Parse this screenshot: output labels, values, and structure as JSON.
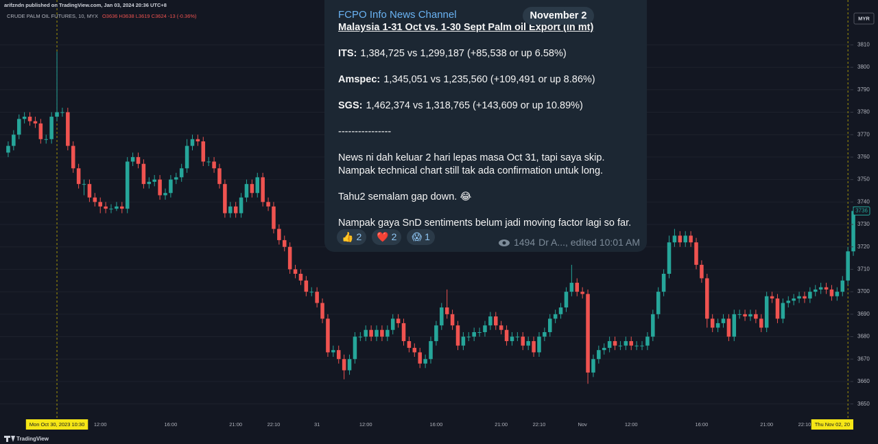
{
  "chart_data": {
    "type": "candlestick",
    "publisher": "arifzndn published on TradingView.com, Jan 03, 2024 20:36 UTC+8",
    "symbol": "CRUDE PALM OIL FUTURES, 10, MYX",
    "ohlc_text": "O3636 H3638 L3619 C3624 -13 (-0.36%)",
    "currency": "MYR",
    "brand": "TradingView",
    "up_color": "#26a69a",
    "down_color": "#ef5350",
    "grid": true,
    "ylim": [
      3645,
      3830
    ],
    "yticks": [
      3650,
      3660,
      3670,
      3680,
      3690,
      3700,
      3710,
      3720,
      3730,
      3740,
      3750,
      3760,
      3770,
      3780,
      3790,
      3800,
      3810
    ],
    "categories": [
      null,
      null,
      null,
      null,
      null,
      null,
      null,
      null,
      null,
      {
        "label": "Mon Oct 30, 2023   10:30",
        "highlight": true
      },
      null,
      null,
      null,
      null,
      null,
      null,
      null,
      "12:00",
      null,
      null,
      null,
      null,
      null,
      null,
      null,
      null,
      null,
      null,
      null,
      null,
      "16:00",
      null,
      null,
      null,
      null,
      null,
      null,
      null,
      null,
      null,
      null,
      null,
      "21:00",
      null,
      null,
      null,
      null,
      null,
      null,
      "22:10",
      null,
      null,
      null,
      null,
      null,
      null,
      null,
      "31",
      null,
      null,
      null,
      null,
      null,
      null,
      null,
      null,
      "12:00",
      null,
      null,
      null,
      null,
      null,
      null,
      null,
      null,
      null,
      null,
      null,
      null,
      "16:00",
      null,
      null,
      null,
      null,
      null,
      null,
      null,
      null,
      null,
      null,
      null,
      "21:00",
      null,
      null,
      null,
      null,
      null,
      null,
      "22:10",
      null,
      null,
      null,
      null,
      null,
      null,
      null,
      "Nov",
      null,
      null,
      null,
      null,
      null,
      null,
      null,
      null,
      "12:00",
      null,
      null,
      null,
      null,
      null,
      null,
      null,
      null,
      null,
      null,
      null,
      null,
      "16:00",
      null,
      null,
      null,
      null,
      null,
      null,
      null,
      null,
      null,
      null,
      null,
      "21:00",
      null,
      null,
      null,
      null,
      null,
      null,
      "22:10",
      null,
      null,
      null,
      null,
      null,
      null,
      null,
      {
        "label": "Thu Nov 02, 20",
        "highlight": true
      },
      null
    ],
    "open": [
      3762,
      3765,
      3770,
      3777,
      3778,
      3776,
      3775,
      3768,
      3768,
      3778,
      3780,
      3780,
      3765,
      3755,
      3748,
      3748,
      3742,
      3740,
      3738,
      3737,
      3737,
      3738,
      3737,
      3758,
      3760,
      3757,
      3748,
      3749,
      3750,
      3743,
      3744,
      3750,
      3751,
      3755,
      3765,
      3768,
      3767,
      3758,
      3758,
      3755,
      3748,
      3735,
      3738,
      3735,
      3742,
      3748,
      3744,
      3751,
      3740,
      3738,
      3728,
      3723,
      3720,
      3710,
      3708,
      3705,
      3700,
      3700,
      3695,
      3688,
      3673,
      3674,
      3670,
      3665,
      3670,
      3680,
      3680,
      3683,
      3680,
      3683,
      3680,
      3683,
      3688,
      3686,
      3678,
      3675,
      3673,
      3668,
      3670,
      3678,
      3685,
      3693,
      3690,
      3685,
      3676,
      3680,
      3680,
      3682,
      3682,
      3685,
      3689,
      3685,
      3683,
      3678,
      3680,
      3680,
      3676,
      3678,
      3673,
      3680,
      3682,
      3688,
      3690,
      3693,
      3700,
      3704,
      3700,
      3699,
      3664,
      3670,
      3674,
      3675,
      3678,
      3676,
      3676,
      3678,
      3676,
      3676,
      3676,
      3680,
      3690,
      3700,
      3708,
      3722,
      3725,
      3722,
      3725,
      3722,
      3712,
      3706,
      3688,
      3684,
      3686,
      3688,
      3680,
      3690,
      3690,
      3689,
      3690,
      3688,
      3684,
      3698,
      3697,
      3688,
      3695,
      3696,
      3697,
      3698,
      3697,
      3700,
      3701,
      3702,
      3701,
      3698,
      3700,
      3705,
      3718
    ],
    "high": [
      3767,
      3772,
      3779,
      3780,
      3780,
      3778,
      3777,
      3770,
      3780,
      3807,
      3782,
      3782,
      3767,
      3757,
      3750,
      3750,
      3744,
      3742,
      3740,
      3739,
      3740,
      3740,
      3760,
      3762,
      3762,
      3759,
      3751,
      3752,
      3752,
      3746,
      3752,
      3753,
      3757,
      3768,
      3770,
      3770,
      3769,
      3760,
      3760,
      3757,
      3750,
      3740,
      3740,
      3744,
      3750,
      3750,
      3753,
      3753,
      3742,
      3740,
      3730,
      3725,
      3722,
      3712,
      3710,
      3707,
      3702,
      3702,
      3697,
      3690,
      3676,
      3676,
      3672,
      3672,
      3682,
      3682,
      3685,
      3685,
      3685,
      3685,
      3685,
      3690,
      3690,
      3688,
      3680,
      3677,
      3675,
      3672,
      3680,
      3687,
      3695,
      3701,
      3692,
      3687,
      3682,
      3682,
      3684,
      3684,
      3687,
      3691,
      3691,
      3687,
      3685,
      3682,
      3682,
      3682,
      3680,
      3680,
      3682,
      3684,
      3690,
      3692,
      3695,
      3702,
      3712,
      3706,
      3702,
      3701,
      3672,
      3676,
      3677,
      3680,
      3680,
      3678,
      3680,
      3680,
      3678,
      3678,
      3682,
      3692,
      3702,
      3710,
      3725,
      3728,
      3727,
      3727,
      3727,
      3724,
      3714,
      3708,
      3690,
      3688,
      3690,
      3690,
      3692,
      3692,
      3692,
      3692,
      3692,
      3690,
      3700,
      3700,
      3699,
      3697,
      3698,
      3699,
      3700,
      3700,
      3702,
      3703,
      3704,
      3704,
      3703,
      3702,
      3707,
      3720,
      3738
    ],
    "low": [
      3760,
      3763,
      3768,
      3775,
      3774,
      3773,
      3766,
      3766,
      3766,
      3776,
      3778,
      3763,
      3753,
      3746,
      3743,
      3740,
      3738,
      3735,
      3735,
      3735,
      3736,
      3735,
      3735,
      3756,
      3755,
      3746,
      3746,
      3747,
      3741,
      3741,
      3742,
      3748,
      3749,
      3753,
      3763,
      3765,
      3756,
      3756,
      3753,
      3746,
      3733,
      3733,
      3733,
      3733,
      3740,
      3742,
      3742,
      3738,
      3736,
      3726,
      3721,
      3718,
      3708,
      3706,
      3703,
      3698,
      3698,
      3693,
      3686,
      3671,
      3671,
      3668,
      3661,
      3663,
      3668,
      3678,
      3678,
      3678,
      3678,
      3678,
      3678,
      3681,
      3684,
      3676,
      3673,
      3671,
      3666,
      3666,
      3668,
      3676,
      3683,
      3688,
      3683,
      3674,
      3674,
      3678,
      3678,
      3680,
      3680,
      3683,
      3683,
      3681,
      3676,
      3676,
      3678,
      3674,
      3674,
      3671,
      3671,
      3678,
      3680,
      3686,
      3688,
      3691,
      3698,
      3698,
      3697,
      3659,
      3662,
      3668,
      3672,
      3673,
      3674,
      3674,
      3674,
      3674,
      3674,
      3674,
      3674,
      3678,
      3688,
      3698,
      3706,
      3720,
      3720,
      3720,
      3720,
      3710,
      3704,
      3684,
      3682,
      3682,
      3684,
      3678,
      3678,
      3688,
      3687,
      3687,
      3686,
      3682,
      3682,
      3695,
      3686,
      3686,
      3693,
      3694,
      3695,
      3695,
      3695,
      3698,
      3699,
      3699,
      3696,
      3696,
      3698,
      3703,
      3716
    ],
    "close": [
      3765,
      3770,
      3777,
      3778,
      3776,
      3775,
      3768,
      3768,
      3778,
      3780,
      3780,
      3765,
      3755,
      3748,
      3748,
      3742,
      3740,
      3738,
      3737,
      3737,
      3738,
      3737,
      3758,
      3760,
      3757,
      3748,
      3749,
      3750,
      3743,
      3744,
      3750,
      3751,
      3755,
      3765,
      3768,
      3767,
      3758,
      3758,
      3755,
      3748,
      3735,
      3738,
      3735,
      3742,
      3748,
      3744,
      3751,
      3740,
      3738,
      3728,
      3723,
      3720,
      3710,
      3708,
      3705,
      3700,
      3700,
      3695,
      3688,
      3673,
      3674,
      3670,
      3665,
      3670,
      3680,
      3680,
      3683,
      3680,
      3683,
      3680,
      3683,
      3688,
      3686,
      3678,
      3675,
      3673,
      3668,
      3670,
      3678,
      3685,
      3693,
      3690,
      3685,
      3676,
      3680,
      3680,
      3682,
      3682,
      3685,
      3689,
      3685,
      3683,
      3678,
      3680,
      3680,
      3676,
      3678,
      3673,
      3680,
      3682,
      3688,
      3690,
      3693,
      3700,
      3704,
      3700,
      3699,
      3664,
      3670,
      3674,
      3675,
      3678,
      3676,
      3676,
      3678,
      3676,
      3676,
      3676,
      3680,
      3690,
      3700,
      3708,
      3722,
      3725,
      3722,
      3725,
      3722,
      3712,
      3706,
      3688,
      3684,
      3686,
      3688,
      3680,
      3690,
      3690,
      3689,
      3690,
      3688,
      3684,
      3698,
      3697,
      3688,
      3695,
      3696,
      3697,
      3698,
      3697,
      3700,
      3701,
      3702,
      3701,
      3698,
      3700,
      3705,
      3718,
      3736
    ]
  },
  "message": {
    "channel": "FCPO Info News Channel",
    "date": "November 2",
    "headline": "Malaysia 1-31 Oct vs. 1-30 Sept Palm oil Export (in mt)",
    "figures": [
      {
        "label": "ITS:",
        "text": "1,384,725 vs 1,299,187 (+85,538 or up 6.58%)"
      },
      {
        "label": "Amspec:",
        "text": "1,345,051 vs 1,235,560 (+109,491 or up 8.86%)"
      },
      {
        "label": "SGS:",
        "text": "1,462,374 vs 1,318,765 (+143,609 or up 10.89%)"
      }
    ],
    "divider": "----------------",
    "paragraphs": [
      [
        "News ni dah keluar 2 hari lepas masa Oct 31, tapi saya skip.",
        "Nampak technical chart still tak ada confirmation untuk long."
      ],
      [
        "Tahu2 semalam gap down. 😂"
      ],
      [
        "Nampak gaya SnD sentiments belum jadi moving factor lagi so far."
      ]
    ],
    "reactions": [
      {
        "emoji": "👍",
        "count": 2
      },
      {
        "emoji": "❤️",
        "count": 2
      },
      {
        "emoji": "😱",
        "count": 1
      }
    ],
    "views": 1494,
    "signature": "Dr A..., edited 10:01 AM"
  }
}
